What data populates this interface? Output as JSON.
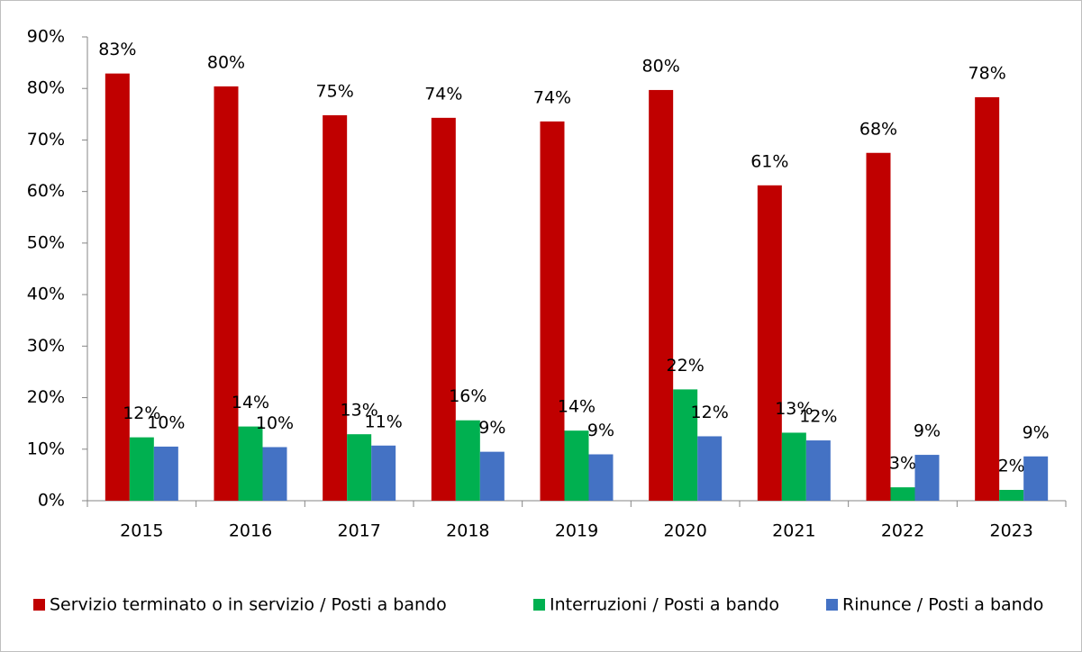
{
  "chart_data": {
    "type": "bar",
    "categories": [
      "2015",
      "2016",
      "2017",
      "2018",
      "2019",
      "2020",
      "2021",
      "2022",
      "2023"
    ],
    "series": [
      {
        "name": "Servizio terminato o in servizio / Posti a bando",
        "color": "#c00000",
        "values": [
          82.9,
          80.4,
          74.8,
          74.3,
          73.6,
          79.7,
          61.2,
          67.5,
          78.3
        ],
        "value_labels": [
          "83%",
          "80%",
          "75%",
          "74%",
          "74%",
          "80%",
          "61%",
          "68%",
          "78%"
        ]
      },
      {
        "name": "Interruzioni / Posti a bando",
        "color": "#00b050",
        "values": [
          12.3,
          14.4,
          12.9,
          15.6,
          13.6,
          21.6,
          13.2,
          2.6,
          2.1
        ],
        "value_labels": [
          "12%",
          "14%",
          "13%",
          "16%",
          "14%",
          "22%",
          "13%",
          "3%",
          "2%"
        ]
      },
      {
        "name": "Rinunce / Posti a bando",
        "color": "#4472c4",
        "values": [
          10.5,
          10.4,
          10.7,
          9.5,
          9.0,
          12.5,
          11.7,
          8.9,
          8.6
        ],
        "value_labels": [
          "10%",
          "10%",
          "11%",
          "9%",
          "9%",
          "12%",
          "12%",
          "9%",
          "9%"
        ]
      }
    ],
    "ylim": [
      0,
      90
    ],
    "yticks": [
      {
        "value": 0,
        "label": "0%"
      },
      {
        "value": 10,
        "label": "10%"
      },
      {
        "value": 20,
        "label": "20%"
      },
      {
        "value": 30,
        "label": "30%"
      },
      {
        "value": 40,
        "label": "40%"
      },
      {
        "value": 50,
        "label": "50%"
      },
      {
        "value": 60,
        "label": "60%"
      },
      {
        "value": 70,
        "label": "70%"
      },
      {
        "value": 80,
        "label": "80%"
      },
      {
        "value": 90,
        "label": "90%"
      }
    ],
    "legend": "bottom"
  }
}
